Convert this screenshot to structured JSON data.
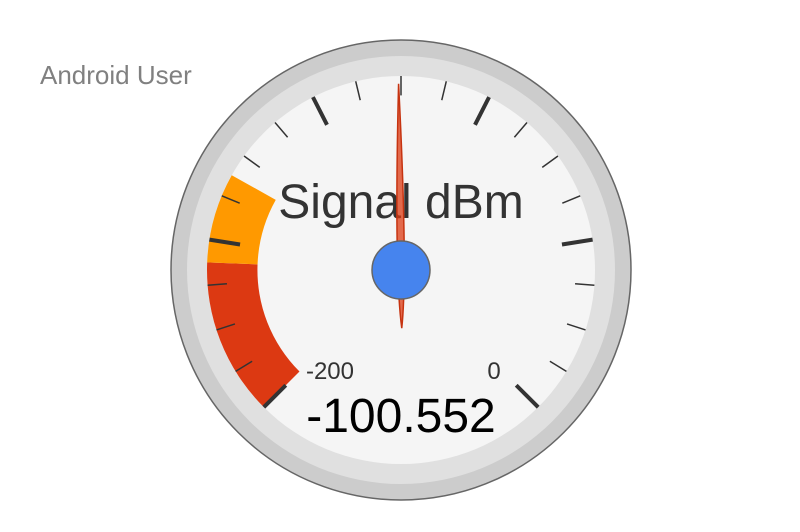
{
  "header": {
    "user_label": "Android User"
  },
  "gauge": {
    "title": "Signal dBm",
    "value": -100.552,
    "value_text": "-100.552",
    "min": -200,
    "max": 0,
    "min_label": "-200",
    "max_label": "0",
    "major_ticks": 5,
    "minor_ticks_per_major": 4,
    "bands": [
      {
        "from": -200,
        "to": -165,
        "color": "#dc3912"
      },
      {
        "from": -165,
        "to": -145,
        "color": "#ff9900"
      }
    ],
    "colors": {
      "outer_ring": "#cccccc",
      "inner_ring": "#e0e0e0",
      "face": "#f5f5f5",
      "tick": "#333333",
      "needle_fill": "#dc3912",
      "needle_stroke": "#c63310",
      "hub": "#4684ee",
      "hub_stroke": "#666666",
      "text": "#333333",
      "value_text": "#000000"
    }
  }
}
